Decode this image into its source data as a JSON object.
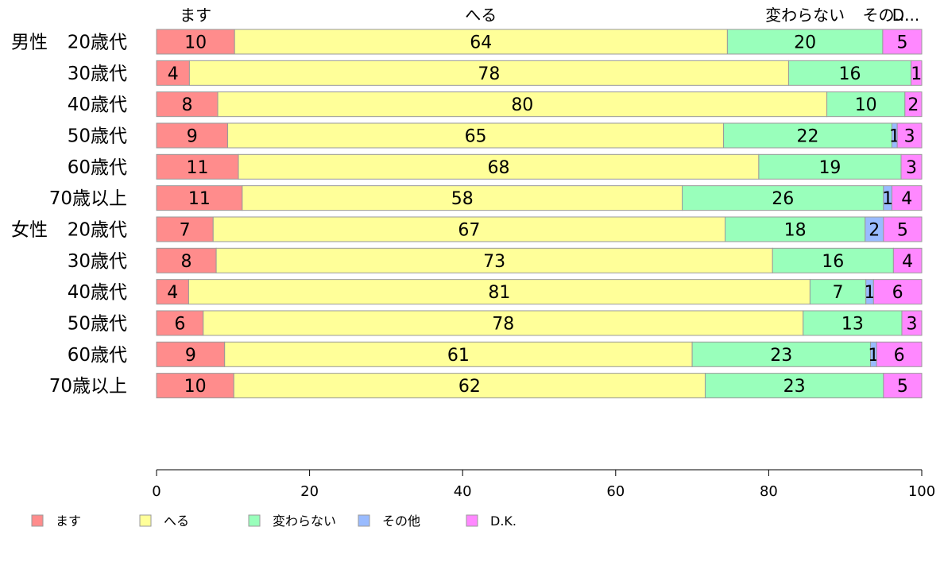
{
  "chart_data": {
    "type": "bar",
    "orientation": "horizontal",
    "stacked": true,
    "grid": false,
    "legend_position": "bottom-left",
    "xlim": [
      0,
      100
    ],
    "x_ticks": [
      0,
      20,
      40,
      60,
      80,
      100
    ],
    "top_labels": [
      "ます",
      "へる",
      "変わらない",
      "その...",
      "D..."
    ],
    "groups": [
      {
        "name": "男性",
        "rows": [
          "20歳代",
          "30歳代",
          "40歳代",
          "50歳代",
          "60歳代",
          "70歳以上"
        ]
      },
      {
        "name": "女性",
        "rows": [
          "20歳代",
          "30歳代",
          "40歳代",
          "50歳代",
          "60歳代",
          "70歳以上"
        ]
      }
    ],
    "series": [
      {
        "name": "ます",
        "color": "#ff8c8c",
        "values": [
          10.2,
          4.3,
          8.0,
          9.3,
          10.7,
          11.2,
          7.4,
          7.8,
          4.2,
          6.1,
          8.9,
          10.1
        ]
      },
      {
        "name": "へる",
        "color": "#ffff99",
        "values": [
          64.4,
          78.3,
          79.6,
          64.8,
          68.0,
          57.5,
          66.9,
          72.7,
          81.2,
          78.4,
          61.1,
          61.6
        ]
      },
      {
        "name": "変わらない",
        "color": "#99ffbb",
        "values": [
          20.3,
          16.0,
          10.2,
          22.0,
          18.6,
          26.3,
          18.3,
          15.8,
          7.3,
          12.9,
          23.3,
          23.3
        ]
      },
      {
        "name": "その他",
        "color": "#99bbff",
        "values": [
          0.0,
          0.0,
          0.0,
          0.7,
          0.0,
          1.1,
          2.4,
          0.0,
          1.0,
          0.0,
          0.8,
          0.0
        ]
      },
      {
        "name": "D.K.",
        "color": "#ff88ff",
        "values": [
          5.1,
          1.4,
          2.2,
          3.2,
          2.7,
          3.9,
          5.0,
          3.7,
          6.3,
          2.6,
          5.9,
          5.0
        ]
      }
    ],
    "labels": [
      [
        "10",
        "64",
        "20",
        "",
        "5"
      ],
      [
        "4",
        "78",
        "16",
        "",
        "1"
      ],
      [
        "8",
        "80",
        "10",
        "",
        "2"
      ],
      [
        "9",
        "65",
        "22",
        "1",
        "3"
      ],
      [
        "11",
        "68",
        "19",
        "",
        "3"
      ],
      [
        "11",
        "58",
        "26",
        "1",
        "4"
      ],
      [
        "7",
        "67",
        "18",
        "2",
        "5"
      ],
      [
        "8",
        "73",
        "16",
        "",
        "4"
      ],
      [
        "4",
        "81",
        "7",
        "1",
        "6"
      ],
      [
        "6",
        "78",
        "13",
        "",
        "3"
      ],
      [
        "9",
        "61",
        "23",
        "1",
        "6"
      ],
      [
        "10",
        "62",
        "23",
        "",
        "5"
      ]
    ]
  }
}
